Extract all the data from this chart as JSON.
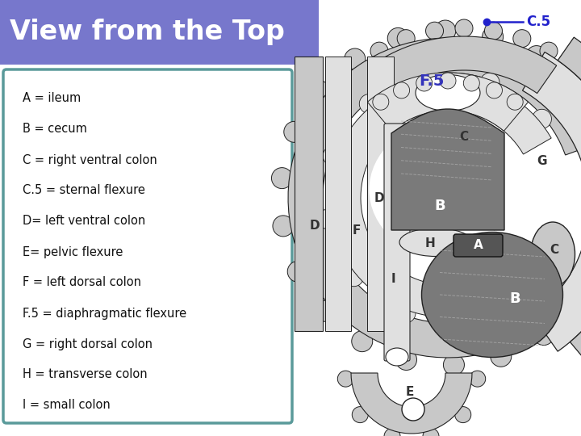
{
  "title": "View from the Top",
  "title_color": "#ffffff",
  "title_bg_color": "#7777cc",
  "background_color": "#ffffff",
  "legend_border_color": "#5a9a9a",
  "legend_bg_color": "#ffffff",
  "labels": [
    "A = ileum",
    "B = cecum",
    "C = right ventral colon",
    "C.5 = sternal flexure",
    "D= left ventral colon",
    "E= pelvic flexure",
    "F = left dorsal colon",
    "F.5 = diaphragmatic flexure",
    "G = right dorsal colon",
    "H = transverse colon",
    "I = small colon"
  ],
  "label_color": "#111111",
  "outer_gray": "#c8c8c8",
  "inner_light": "#e0e0e0",
  "dark_gray": "#7a7a7a",
  "medium_gray": "#909090",
  "line_color": "#222222",
  "white": "#ffffff",
  "blue_label": "#3333bb"
}
